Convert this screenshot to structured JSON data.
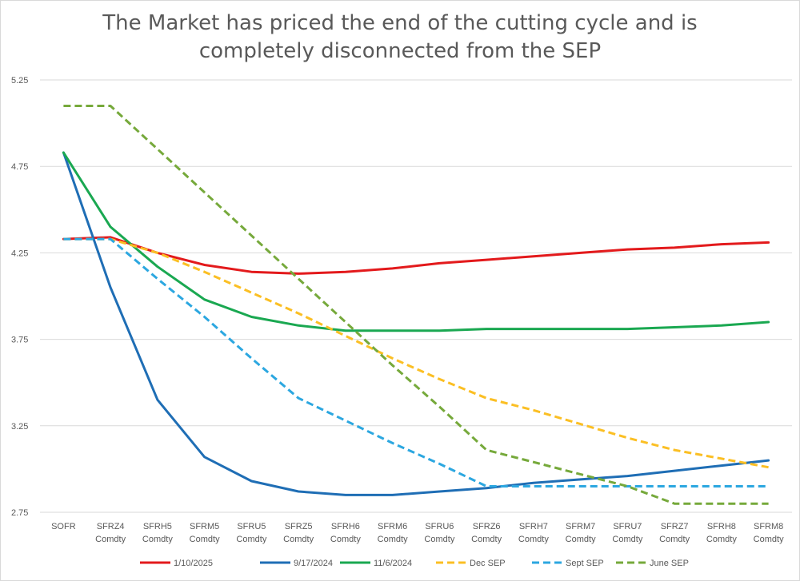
{
  "chart_data": {
    "type": "line",
    "title_line1": "The Market has priced the end of the cutting cycle and is",
    "title_line2": "completely disconnected from the SEP",
    "categories": [
      [
        "SOFR"
      ],
      [
        "SFRZ4",
        "Comdty"
      ],
      [
        "SFRH5",
        "Comdty"
      ],
      [
        "SFRM5",
        "Comdty"
      ],
      [
        "SFRU5",
        "Comdty"
      ],
      [
        "SFRZ5",
        "Comdty"
      ],
      [
        "SFRH6",
        "Comdty"
      ],
      [
        "SFRM6",
        "Comdty"
      ],
      [
        "SFRU6",
        "Comdty"
      ],
      [
        "SFRZ6",
        "Comdty"
      ],
      [
        "SFRH7",
        "Comdty"
      ],
      [
        "SFRM7",
        "Comdty"
      ],
      [
        "SFRU7",
        "Comdty"
      ],
      [
        "SFRZ7",
        "Comdty"
      ],
      [
        "SFRH8",
        "Comdty"
      ],
      [
        "SFRM8",
        "Comdty"
      ]
    ],
    "ylim": [
      2.75,
      5.25
    ],
    "yticks": [
      "2.75",
      "3.25",
      "3.75",
      "4.25",
      "4.75",
      "5.25"
    ],
    "grid": true,
    "legend_position": "bottom",
    "series": [
      {
        "name": "1/10/2025",
        "color": "#e31a1c",
        "dash": false,
        "values": [
          4.33,
          4.34,
          4.25,
          4.18,
          4.14,
          4.13,
          4.14,
          4.16,
          4.19,
          4.21,
          4.23,
          4.25,
          4.27,
          4.28,
          4.3,
          4.31
        ]
      },
      {
        "name": "9/17/2024",
        "color": "#1f6eb5",
        "dash": false,
        "values": [
          4.83,
          4.05,
          3.4,
          3.07,
          2.93,
          2.87,
          2.85,
          2.85,
          2.87,
          2.89,
          2.92,
          2.94,
          2.96,
          2.99,
          3.02,
          3.05
        ]
      },
      {
        "name": "11/6/2024",
        "color": "#1aa851",
        "dash": false,
        "values": [
          4.83,
          4.4,
          4.17,
          3.98,
          3.88,
          3.83,
          3.8,
          3.8,
          3.8,
          3.81,
          3.81,
          3.81,
          3.81,
          3.82,
          3.83,
          3.85
        ]
      },
      {
        "name": "Dec SEP",
        "color": "#fbbf24",
        "dash": true,
        "values": [
          4.33,
          4.33,
          4.25,
          4.14,
          4.02,
          3.9,
          3.77,
          3.64,
          3.52,
          3.41,
          3.34,
          3.26,
          3.18,
          3.11,
          3.06,
          3.01
        ]
      },
      {
        "name": "Sept SEP",
        "color": "#2ca7e0",
        "dash": true,
        "values": [
          4.33,
          4.33,
          4.1,
          3.88,
          3.64,
          3.41,
          3.28,
          3.15,
          3.03,
          2.9,
          2.9,
          2.9,
          2.9,
          2.9,
          2.9,
          2.9
        ]
      },
      {
        "name": "June SEP",
        "color": "#76a93b",
        "dash": true,
        "values": [
          5.1,
          5.1,
          4.85,
          4.6,
          4.35,
          4.1,
          3.85,
          3.6,
          3.36,
          3.11,
          3.04,
          2.97,
          2.9,
          2.8,
          2.8,
          2.8
        ]
      }
    ]
  }
}
